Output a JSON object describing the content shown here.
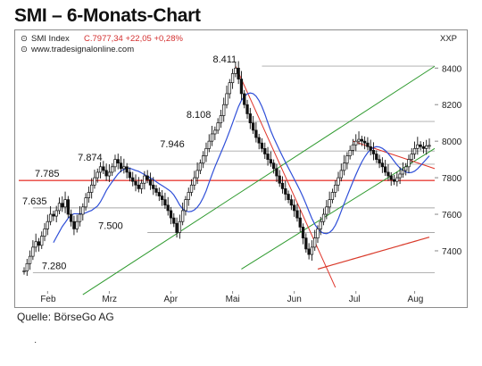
{
  "page": {
    "title": "SMI – 6-Monats-Chart",
    "source": "Quelle: BörseGo AG",
    "footnote": "·"
  },
  "chart_data": {
    "type": "candlestick",
    "title": "SMI – 6-Monats-Chart",
    "header": {
      "symbol_name": "SMI Index",
      "price_line": "C.7977,34 +22,05 +0,28%",
      "website": "www.tradesignalonline.com",
      "currency": "XXP"
    },
    "colors": {
      "candle": "#111111",
      "ma_blue": "#2f4fd8",
      "ma_red": "#d93a2a",
      "trend_green": "#2e9a2e",
      "trend_red": "#e0342a",
      "support_red": "#e8403a",
      "level_gray": "#a8a8a8",
      "grid": "#d9d9d9"
    },
    "x_labels": [
      "Feb",
      "Mrz",
      "Apr",
      "Mai",
      "Jun",
      "Jul",
      "Aug"
    ],
    "ylim": [
      7180,
      8460
    ],
    "y_ticks": [
      8400,
      8200,
      8000,
      7800,
      7600,
      7400
    ],
    "level_labels": [
      {
        "label": "8.411",
        "value": 8411
      },
      {
        "label": "8.108",
        "value": 8108
      },
      {
        "label": "7.946",
        "value": 7946
      },
      {
        "label": "7.874",
        "value": 7874
      },
      {
        "label": "7.785",
        "value": 7785
      },
      {
        "label": "7.635",
        "value": 7635
      },
      {
        "label": "7.500",
        "value": 7500
      },
      {
        "label": "7.280",
        "value": 7280
      }
    ],
    "closes": [
      7290,
      7330,
      7370,
      7420,
      7450,
      7430,
      7480,
      7520,
      7560,
      7600,
      7590,
      7620,
      7660,
      7640,
      7680,
      7600,
      7560,
      7520,
      7560,
      7600,
      7640,
      7690,
      7720,
      7760,
      7800,
      7830,
      7860,
      7840,
      7810,
      7830,
      7860,
      7900,
      7880,
      7850,
      7860,
      7830,
      7800,
      7780,
      7760,
      7740,
      7770,
      7810,
      7790,
      7760,
      7740,
      7720,
      7700,
      7680,
      7650,
      7620,
      7580,
      7550,
      7500,
      7560,
      7620,
      7680,
      7720,
      7760,
      7800,
      7840,
      7880,
      7920,
      7960,
      8000,
      8040,
      8060,
      8100,
      8140,
      8200,
      8260,
      8320,
      8370,
      8400,
      8340,
      8260,
      8200,
      8150,
      8100,
      8060,
      8020,
      7990,
      7960,
      7930,
      7900,
      7880,
      7850,
      7810,
      7770,
      7740,
      7710,
      7680,
      7650,
      7620,
      7580,
      7530,
      7470,
      7410,
      7380,
      7420,
      7470,
      7520,
      7560,
      7600,
      7640,
      7680,
      7720,
      7760,
      7800,
      7840,
      7880,
      7920,
      7950,
      7980,
      8000,
      8010,
      8000,
      7990,
      7970,
      7950,
      7930,
      7900,
      7880,
      7860,
      7830,
      7810,
      7790,
      7780,
      7800,
      7820,
      7840,
      7860,
      7900,
      7930,
      7960,
      7980,
      7970,
      7960,
      7975,
      7977
    ]
  }
}
